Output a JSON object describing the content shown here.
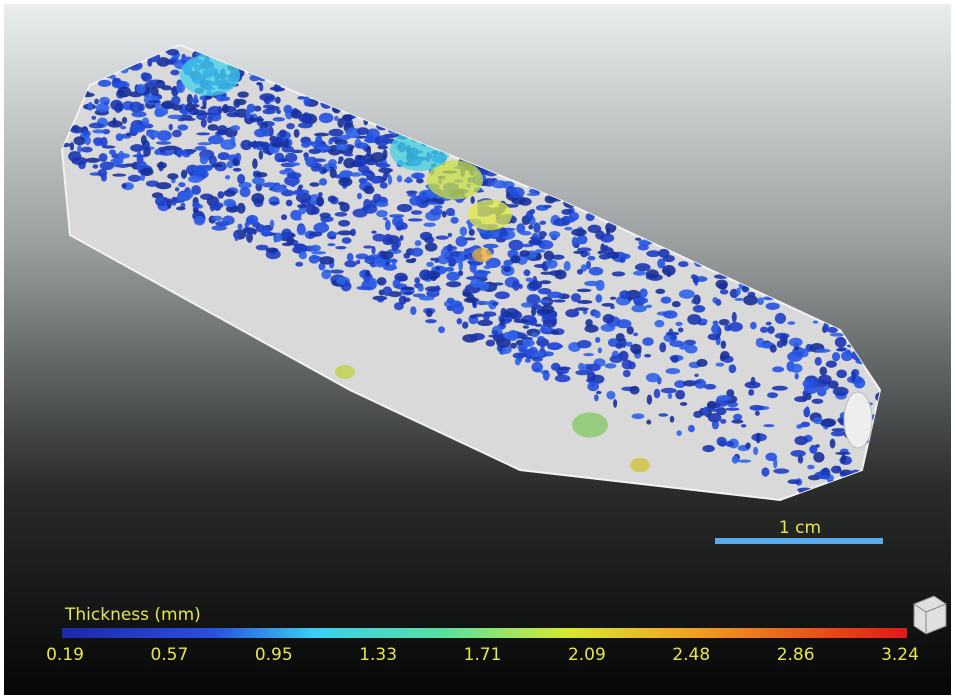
{
  "scale_bar": {
    "label": "1 cm"
  },
  "colorbar": {
    "title": "Thickness (mm)",
    "ticks": [
      "0.19",
      "0.57",
      "0.95",
      "1.33",
      "1.71",
      "2.09",
      "2.48",
      "2.86",
      "3.24"
    ]
  }
}
